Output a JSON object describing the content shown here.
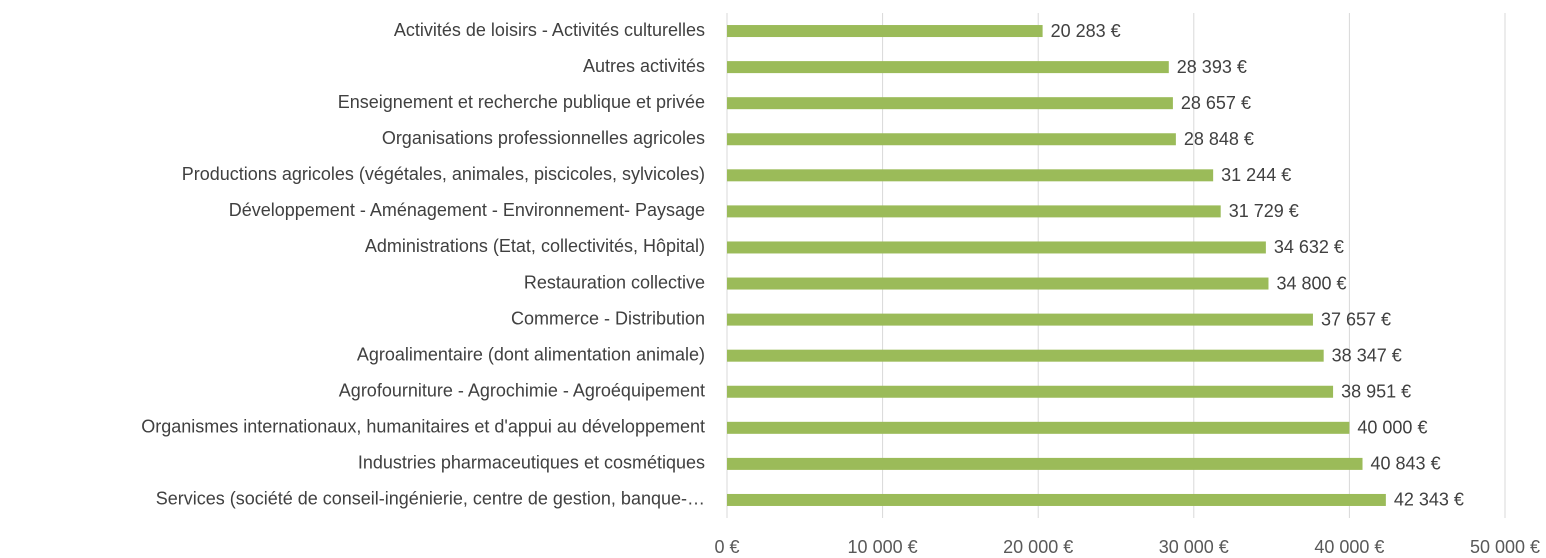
{
  "chart_data": {
    "type": "bar",
    "orientation": "horizontal",
    "categories": [
      "Activités de loisirs - Activités culturelles",
      "Autres activités",
      "Enseignement et recherche publique et privée",
      "Organisations professionnelles agricoles",
      "Productions agricoles (végétales, animales, piscicoles, sylvicoles)",
      "Développement - Aménagement - Environnement- Paysage",
      "Administrations (Etat, collectivités, Hôpital)",
      "Restauration collective",
      "Commerce - Distribution",
      "Agroalimentaire (dont alimentation animale)",
      "Agrofourniture - Agrochimie - Agroéquipement",
      "Organismes internationaux, humanitaires et d'appui au développement",
      "Industries pharmaceutiques et cosmétiques",
      "Services (société de conseil-ingénierie, centre de gestion, banque-…"
    ],
    "values": [
      20283,
      28393,
      28657,
      28848,
      31244,
      31729,
      34632,
      34800,
      37657,
      38347,
      38951,
      40000,
      40843,
      42343
    ],
    "value_labels": [
      "20 283 €",
      "28 393 €",
      "28 657 €",
      "28 848 €",
      "31 244 €",
      "31 729 €",
      "34 632 €",
      "34 800 €",
      "37 657 €",
      "38 347 €",
      "38 951 €",
      "40 000 €",
      "40 843 €",
      "42 343 €"
    ],
    "color": "#9bbb59",
    "xlim": [
      0,
      50000
    ],
    "xticks": [
      {
        "value": 0,
        "label": "0 €"
      },
      {
        "value": 10000,
        "label": "10 000 €"
      },
      {
        "value": 20000,
        "label": "20 000 €"
      },
      {
        "value": 30000,
        "label": "30 000 €"
      },
      {
        "value": 40000,
        "label": "40 000 €"
      },
      {
        "value": 50000,
        "label": "50 000 €"
      }
    ],
    "grid": true
  }
}
